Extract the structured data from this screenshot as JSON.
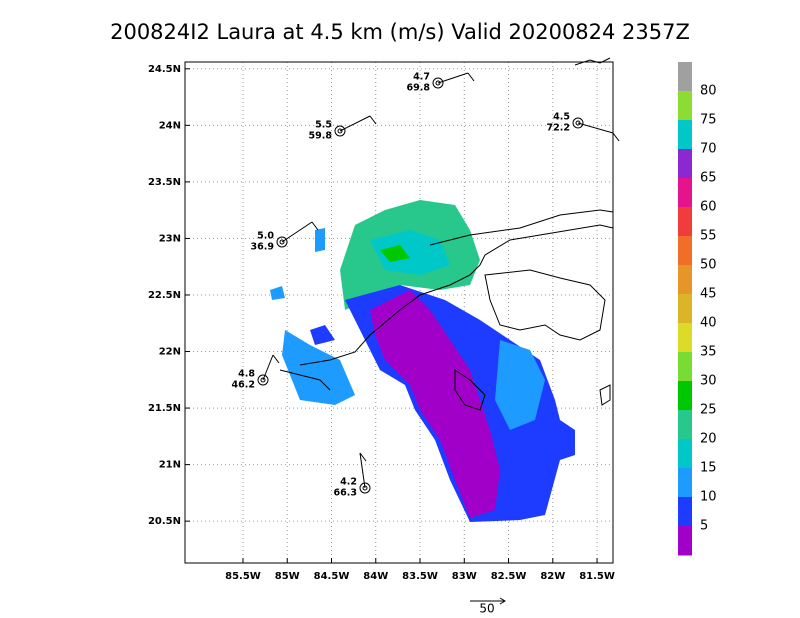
{
  "title": "200824I2 Laura at 4.5 km (m/s) Valid 20200824 2357Z",
  "axes": {
    "xlim": [
      -86.155,
      -81.32
    ],
    "ylim": [
      20.13,
      24.56
    ],
    "xticks": [
      {
        "value": -85.5,
        "label": "85.5W"
      },
      {
        "value": -85,
        "label": "85W"
      },
      {
        "value": -84.5,
        "label": "84.5W"
      },
      {
        "value": -84,
        "label": "84W"
      },
      {
        "value": -83.5,
        "label": "83.5W"
      },
      {
        "value": -83,
        "label": "83W"
      },
      {
        "value": -82.5,
        "label": "82.5W"
      },
      {
        "value": -82,
        "label": "82W"
      },
      {
        "value": -81.5,
        "label": "81.5W"
      }
    ],
    "yticks": [
      {
        "value": 20.5,
        "label": "20.5N"
      },
      {
        "value": 21,
        "label": "21N"
      },
      {
        "value": 21.5,
        "label": "21.5N"
      },
      {
        "value": 22,
        "label": "22N"
      },
      {
        "value": 22.5,
        "label": "22.5N"
      },
      {
        "value": 23,
        "label": "23N"
      },
      {
        "value": 23.5,
        "label": "23.5N"
      },
      {
        "value": 24,
        "label": "24N"
      },
      {
        "value": 24.5,
        "label": "24.5N"
      }
    ],
    "grid": true
  },
  "stations": [
    {
      "top": "4.7",
      "bottom": "69.8"
    },
    {
      "top": "5.5",
      "bottom": "59.8"
    },
    {
      "top": "4.5",
      "bottom": "72.2"
    },
    {
      "top": "5.0",
      "bottom": "36.9"
    },
    {
      "top": "4.8",
      "bottom": "46.2"
    },
    {
      "top": "4.2",
      "bottom": "66.3"
    }
  ],
  "colorbar": {
    "labels": [
      80,
      75,
      70,
      65,
      60,
      55,
      50,
      45,
      40,
      35,
      30,
      25,
      20,
      15,
      10,
      5
    ],
    "colors": [
      "#a0a0a0",
      "#8cdc32",
      "#00c8c8",
      "#8c28d2",
      "#e6148c",
      "#f03c3c",
      "#f06e28",
      "#e69628",
      "#dcb428",
      "#dcdc28",
      "#78dc32",
      "#00c800",
      "#28c88c",
      "#00c8c8",
      "#1e9bff",
      "#1e3cff",
      "#a000c8"
    ]
  },
  "reference": {
    "label": "50"
  }
}
